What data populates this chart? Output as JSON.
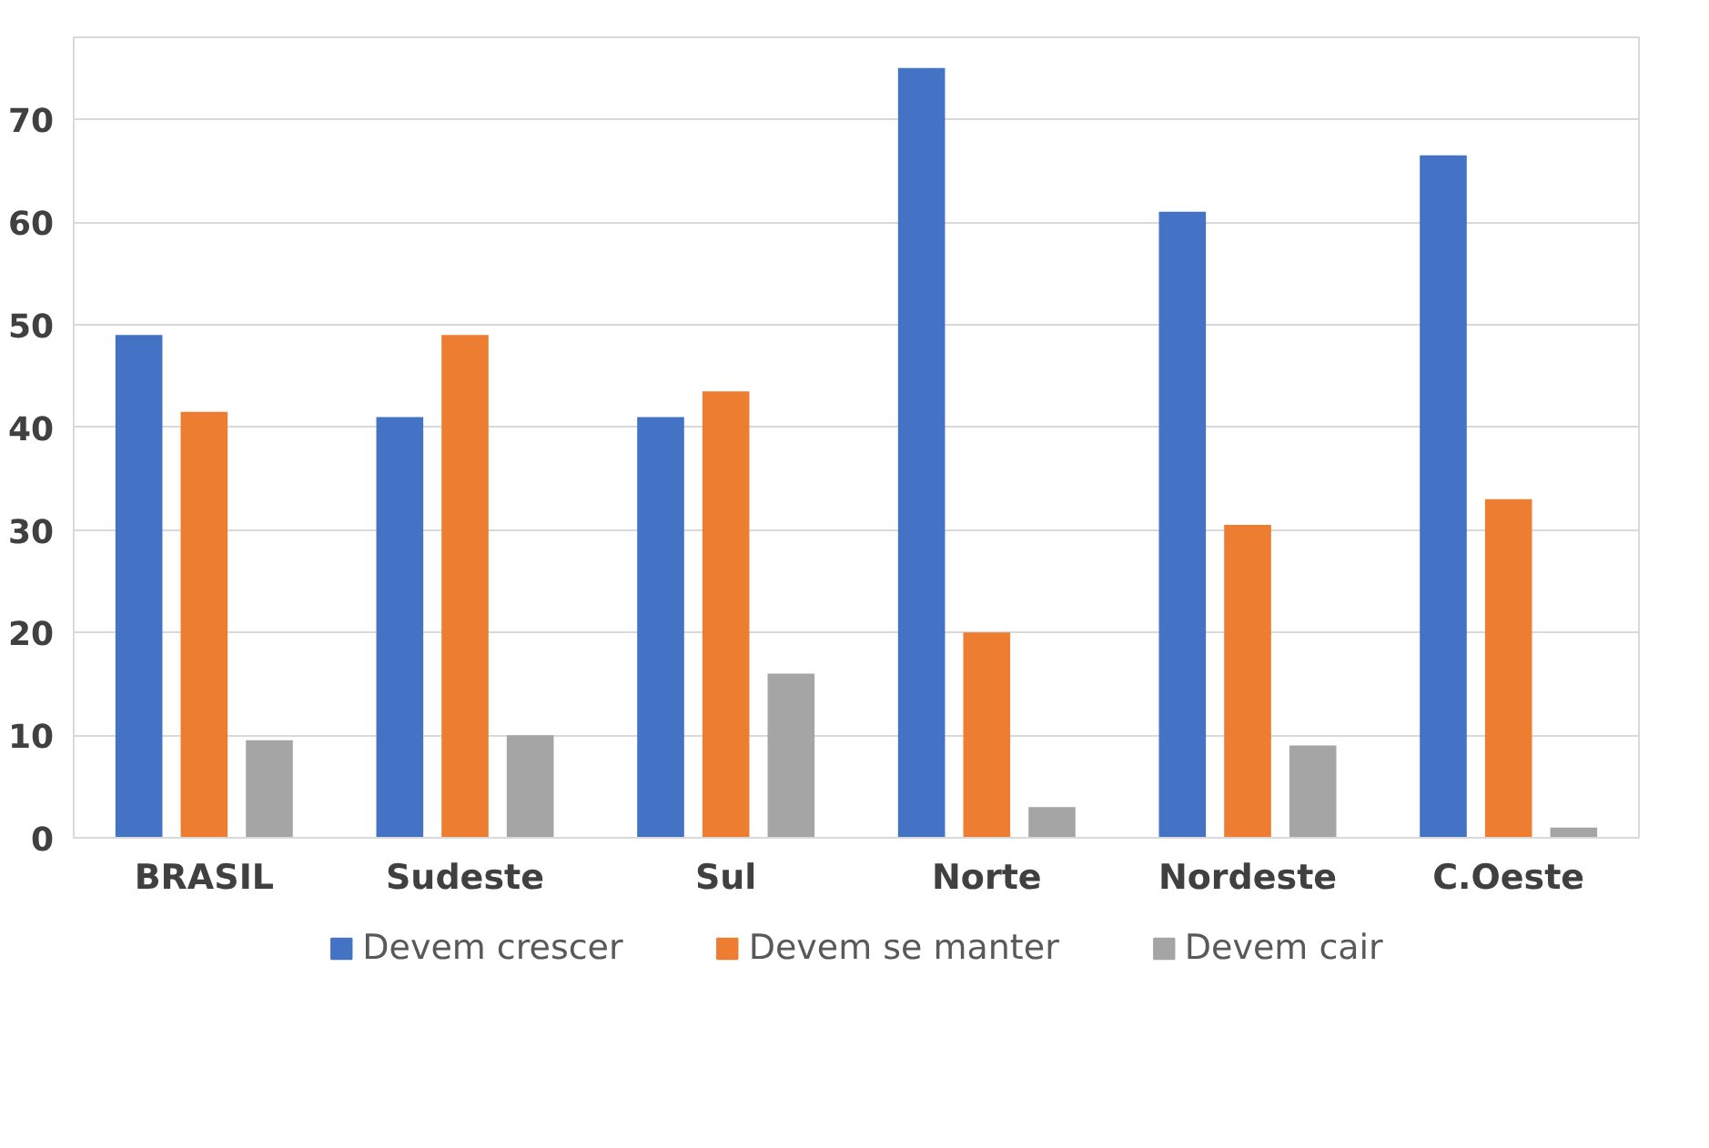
{
  "chart_data": {
    "type": "bar",
    "categories": [
      "BRASIL",
      "Sudeste",
      "Sul",
      "Norte",
      "Nordeste",
      "C.Oeste"
    ],
    "series": [
      {
        "name": "Devem crescer",
        "color": "#4472c4",
        "values": [
          49,
          41,
          41,
          75,
          61,
          66.5
        ]
      },
      {
        "name": "Devem se manter",
        "color": "#ed7d31",
        "values": [
          41.5,
          49,
          43.5,
          20,
          30.5,
          33
        ]
      },
      {
        "name": "Devem cair",
        "color": "#a5a5a5",
        "values": [
          9.5,
          10,
          16,
          3,
          9,
          1
        ]
      }
    ],
    "ylim": [
      0,
      78
    ],
    "yticks": [
      0,
      10,
      20,
      30,
      40,
      50,
      60,
      70
    ],
    "grid": "y",
    "legend": "bottom"
  }
}
